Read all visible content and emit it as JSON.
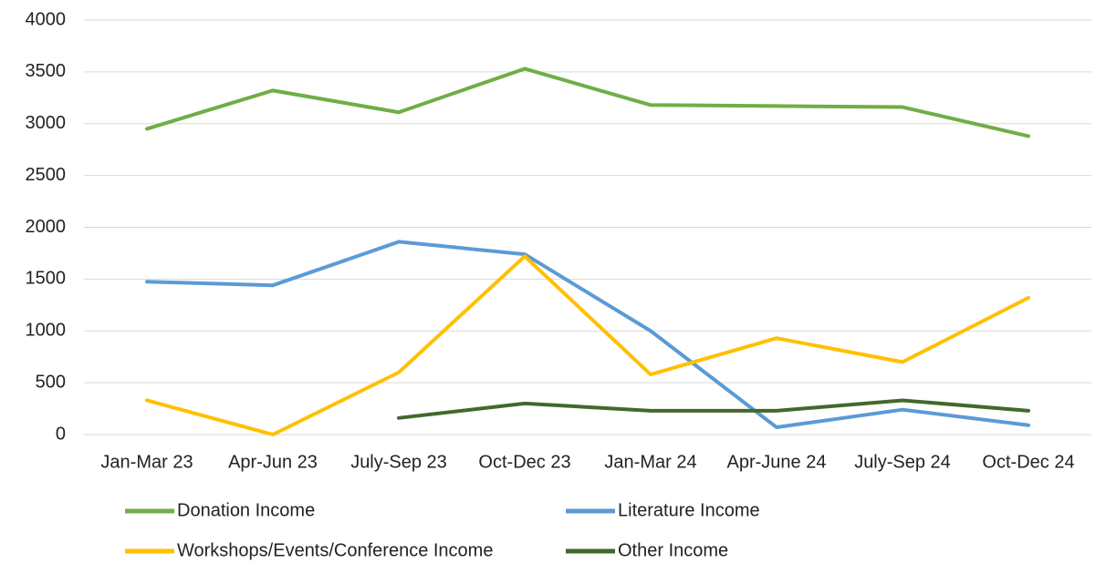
{
  "chart_data": {
    "type": "line",
    "categories": [
      "Jan-Mar 23",
      "Apr-Jun 23",
      "July-Sep 23",
      "Oct-Dec 23",
      "Jan-Mar 24",
      "Apr-June 24",
      "July-Sep 24",
      "Oct-Dec 24"
    ],
    "series": [
      {
        "name": "Donation Income",
        "color": "#70ad47",
        "values": [
          2950,
          3320,
          3110,
          3530,
          3180,
          3170,
          3160,
          2880
        ]
      },
      {
        "name": "Literature Income",
        "color": "#5b9bd5",
        "values": [
          1475,
          1440,
          1860,
          1740,
          1000,
          70,
          240,
          90
        ]
      },
      {
        "name": "Workshops/Events/Conference Income",
        "color": "#ffc000",
        "values": [
          330,
          0,
          600,
          1720,
          580,
          930,
          700,
          1320
        ]
      },
      {
        "name": "Other Income",
        "color": "#43682b",
        "values": [
          null,
          null,
          160,
          300,
          230,
          230,
          330,
          230
        ]
      }
    ],
    "ylim": [
      0,
      4000
    ],
    "yticks": [
      0,
      500,
      1000,
      1500,
      2000,
      2500,
      3000,
      3500,
      4000
    ],
    "grid": true,
    "legend": "bottom"
  }
}
